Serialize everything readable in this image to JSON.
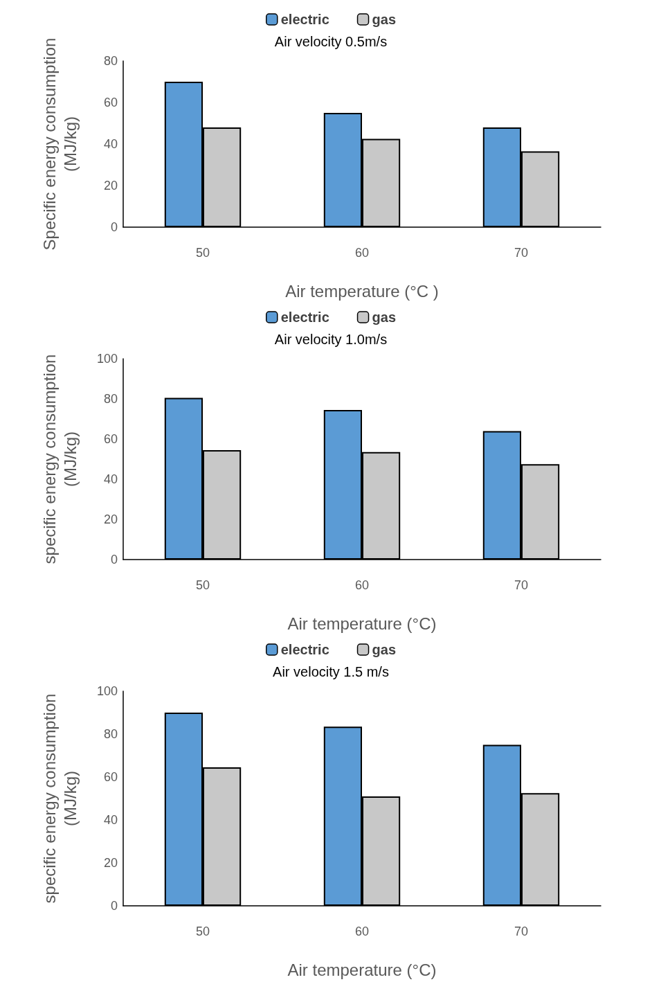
{
  "chart_data": [
    {
      "type": "bar",
      "categories": [
        "50",
        "60",
        "70"
      ],
      "xlabel": "Air temperature (°C )",
      "ylabel": "Specific energy consumption\n(MJ/kg)",
      "ylim": [
        0,
        80
      ],
      "yticks": [
        0,
        20,
        40,
        60,
        80
      ],
      "legend": "top",
      "grid": false,
      "annotations": [
        "Air velocity 0.5m/s"
      ],
      "series": [
        {
          "name": "electric",
          "color": "#5b9bd5",
          "values": [
            70,
            55,
            48
          ]
        },
        {
          "name": "gas",
          "color": "#c8c8c8",
          "values": [
            48,
            42.5,
            36.5
          ]
        }
      ]
    },
    {
      "type": "bar",
      "categories": [
        "50",
        "60",
        "70"
      ],
      "xlabel": "Air temperature (°C)",
      "ylabel": "specific energy consumption\n(MJ/kg)",
      "ylim": [
        0,
        100
      ],
      "yticks": [
        0,
        20,
        40,
        60,
        80,
        100
      ],
      "legend": "top",
      "grid": false,
      "annotations": [
        "Air velocity 1.0m/s"
      ],
      "series": [
        {
          "name": "electric",
          "color": "#5b9bd5",
          "values": [
            80.5,
            74.5,
            64
          ]
        },
        {
          "name": "gas",
          "color": "#c8c8c8",
          "values": [
            54.5,
            53.5,
            47.5
          ]
        }
      ]
    },
    {
      "type": "bar",
      "categories": [
        "50",
        "60",
        "70"
      ],
      "xlabel": "Air temperature (°C)",
      "ylabel": "specific energy consumption\n(MJ/kg)",
      "ylim": [
        0,
        100
      ],
      "yticks": [
        0,
        20,
        40,
        60,
        80,
        100
      ],
      "legend": "top",
      "grid": false,
      "annotations": [
        "Air velocity 1.5 m/s"
      ],
      "series": [
        {
          "name": "electric",
          "color": "#5b9bd5",
          "values": [
            90,
            83.5,
            75
          ]
        },
        {
          "name": "gas",
          "color": "#c8c8c8",
          "values": [
            64.5,
            51,
            52.5
          ]
        }
      ]
    }
  ]
}
